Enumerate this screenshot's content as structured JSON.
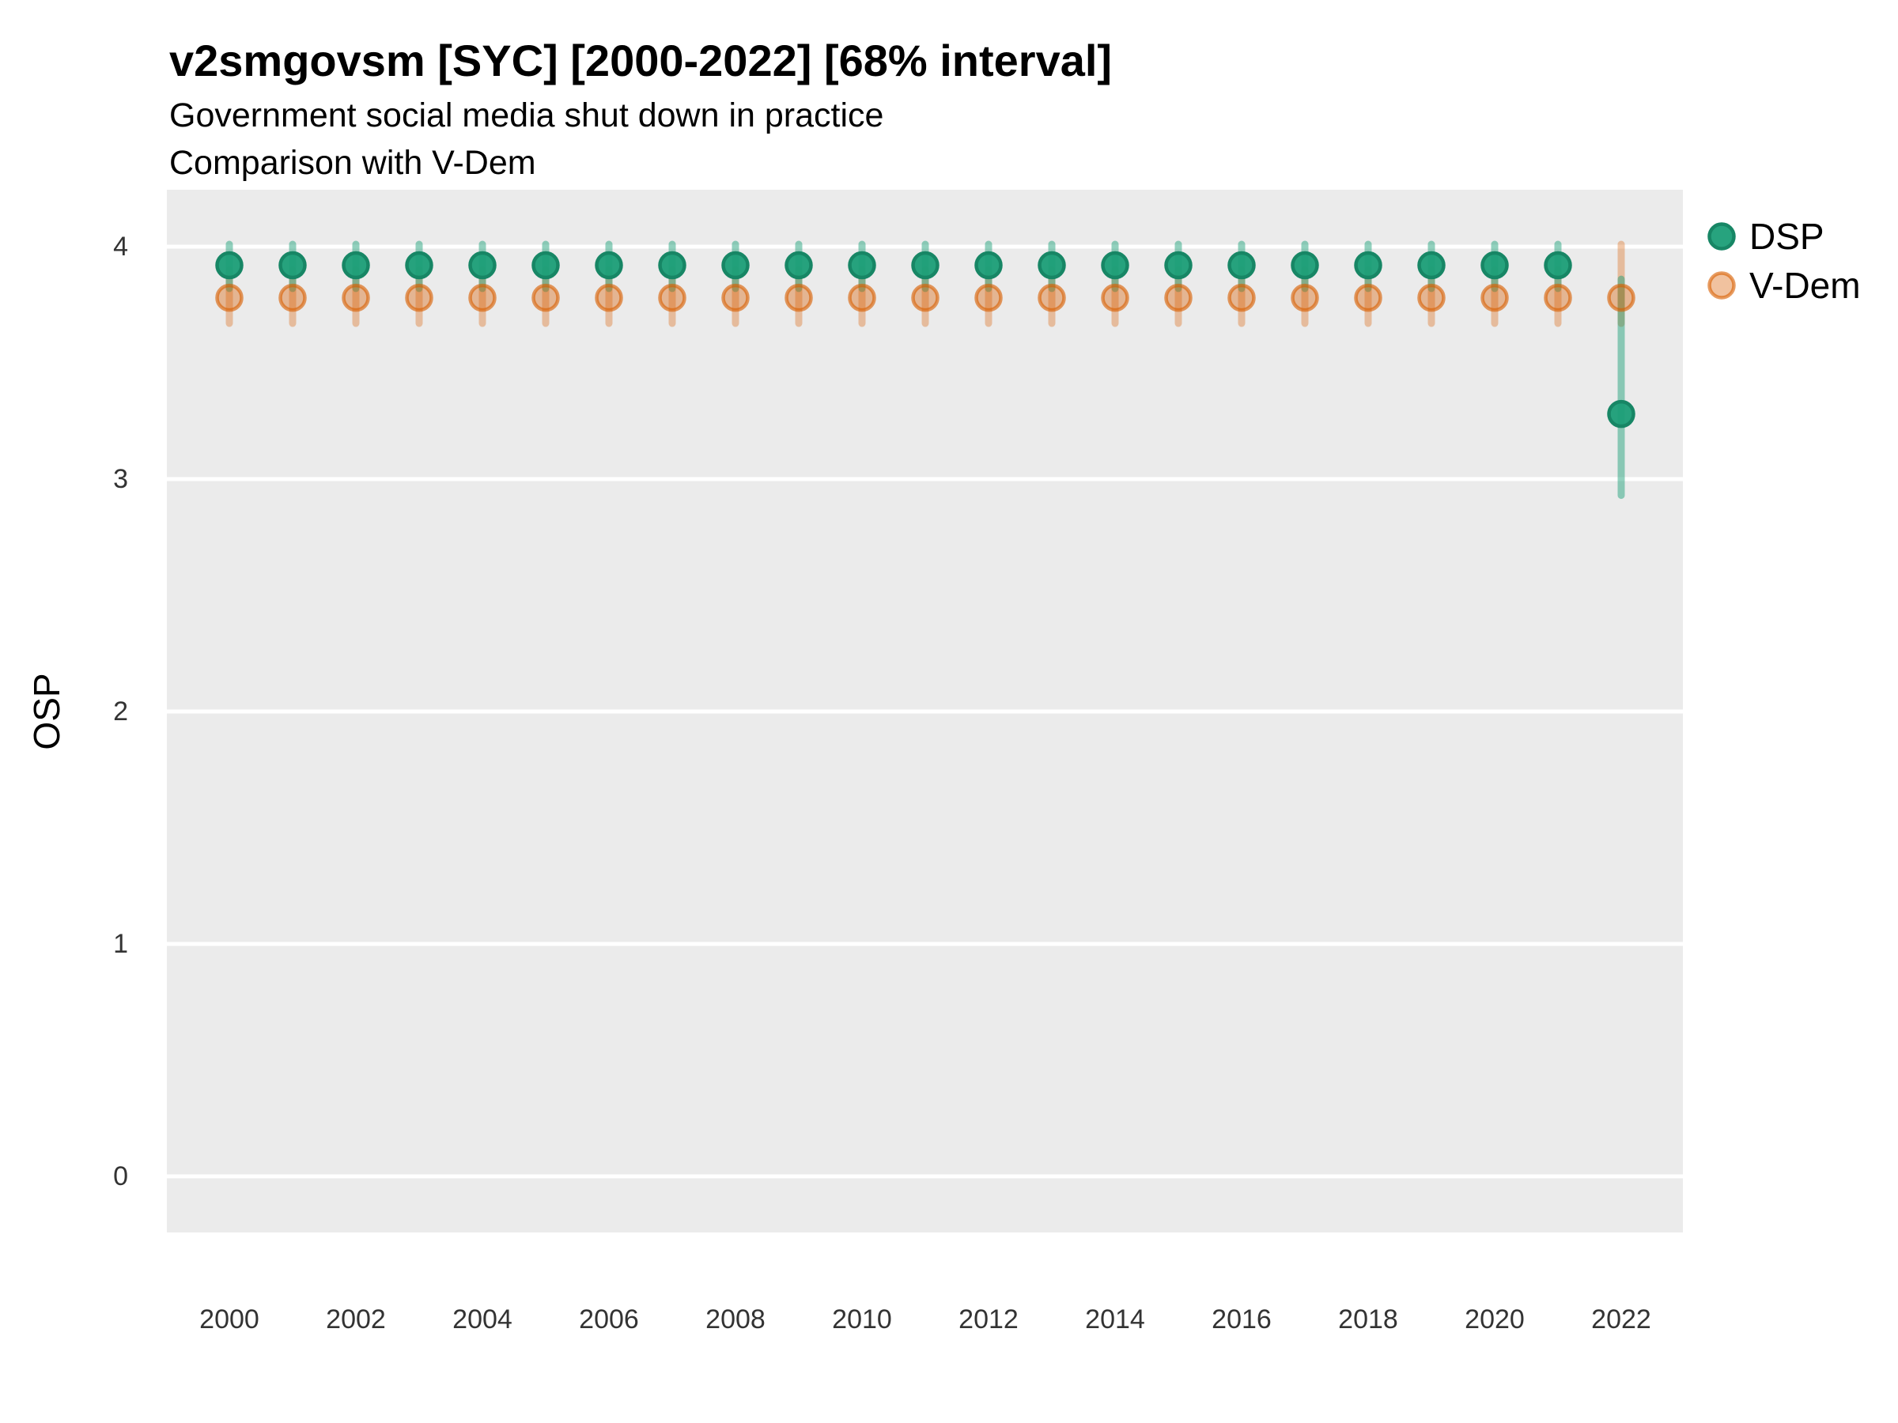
{
  "header": {
    "title": "v2smgovsm [SYC] [2000-2022] [68% interval]",
    "subtitle": "Government social media shut down in practice",
    "comparison_note": "Comparison with V-Dem"
  },
  "y_axis": {
    "label": "OSP",
    "ticks": [
      4,
      3,
      2,
      1,
      0
    ]
  },
  "x_axis": {
    "ticks": [
      2000,
      2002,
      2004,
      2006,
      2008,
      2010,
      2012,
      2014,
      2016,
      2018,
      2020,
      2022
    ]
  },
  "legend": {
    "position": "right",
    "items": [
      {
        "label": "DSP",
        "color": "#1B9E77"
      },
      {
        "label": "V-Dem",
        "color": "#D95F02"
      }
    ]
  },
  "colors": {
    "panel_background": "#EBEBEB",
    "gridline": "#FFFFFF",
    "dsp_green": "#1B9E77",
    "vdem_orange": "#D95F02",
    "text": "#000000",
    "tick_text": "#333333"
  },
  "chart_data": {
    "type": "scatter",
    "variant": "pointrange",
    "title": "v2smgovsm [SYC] [2000-2022] [68% interval]",
    "subtitle": "Government social media shut down in practice",
    "note": "Comparison with V-Dem",
    "interval": "68%",
    "xlabel": "",
    "ylabel": "OSP",
    "ylim": [
      -0.25,
      4.25
    ],
    "grid": "major-horizontal-only",
    "legend_position": "right",
    "x": [
      2000,
      2001,
      2002,
      2003,
      2004,
      2005,
      2006,
      2007,
      2008,
      2009,
      2010,
      2011,
      2012,
      2013,
      2014,
      2015,
      2016,
      2017,
      2018,
      2019,
      2020,
      2021,
      2022
    ],
    "series": [
      {
        "name": "DSP",
        "color": "#1B9E77",
        "values": [
          3.92,
          3.92,
          3.92,
          3.92,
          3.92,
          3.92,
          3.92,
          3.92,
          3.92,
          3.92,
          3.92,
          3.92,
          3.92,
          3.92,
          3.92,
          3.92,
          3.92,
          3.92,
          3.92,
          3.92,
          3.92,
          3.92,
          3.28
        ],
        "ci_low": [
          3.82,
          3.82,
          3.82,
          3.82,
          3.82,
          3.82,
          3.82,
          3.82,
          3.82,
          3.82,
          3.82,
          3.82,
          3.82,
          3.82,
          3.82,
          3.82,
          3.82,
          3.82,
          3.82,
          3.82,
          3.82,
          3.82,
          2.93
        ],
        "ci_high": [
          4.01,
          4.01,
          4.01,
          4.01,
          4.01,
          4.01,
          4.01,
          4.01,
          4.01,
          4.01,
          4.01,
          4.01,
          4.01,
          4.01,
          4.01,
          4.01,
          4.01,
          4.01,
          4.01,
          4.01,
          4.01,
          4.01,
          3.86
        ]
      },
      {
        "name": "V-Dem",
        "color": "#D95F02",
        "values": [
          3.78,
          3.78,
          3.78,
          3.78,
          3.78,
          3.78,
          3.78,
          3.78,
          3.78,
          3.78,
          3.78,
          3.78,
          3.78,
          3.78,
          3.78,
          3.78,
          3.78,
          3.78,
          3.78,
          3.78,
          3.78,
          3.78,
          3.78
        ],
        "ci_low": [
          3.67,
          3.67,
          3.67,
          3.67,
          3.67,
          3.67,
          3.67,
          3.67,
          3.67,
          3.67,
          3.67,
          3.67,
          3.67,
          3.67,
          3.67,
          3.67,
          3.67,
          3.67,
          3.67,
          3.67,
          3.67,
          3.67,
          3.67
        ],
        "ci_high": [
          3.9,
          3.9,
          3.9,
          3.9,
          3.9,
          3.9,
          3.9,
          3.9,
          3.9,
          3.9,
          3.9,
          3.9,
          3.9,
          3.9,
          3.9,
          3.9,
          3.9,
          3.9,
          3.9,
          3.9,
          3.9,
          3.9,
          4.01
        ]
      }
    ]
  }
}
